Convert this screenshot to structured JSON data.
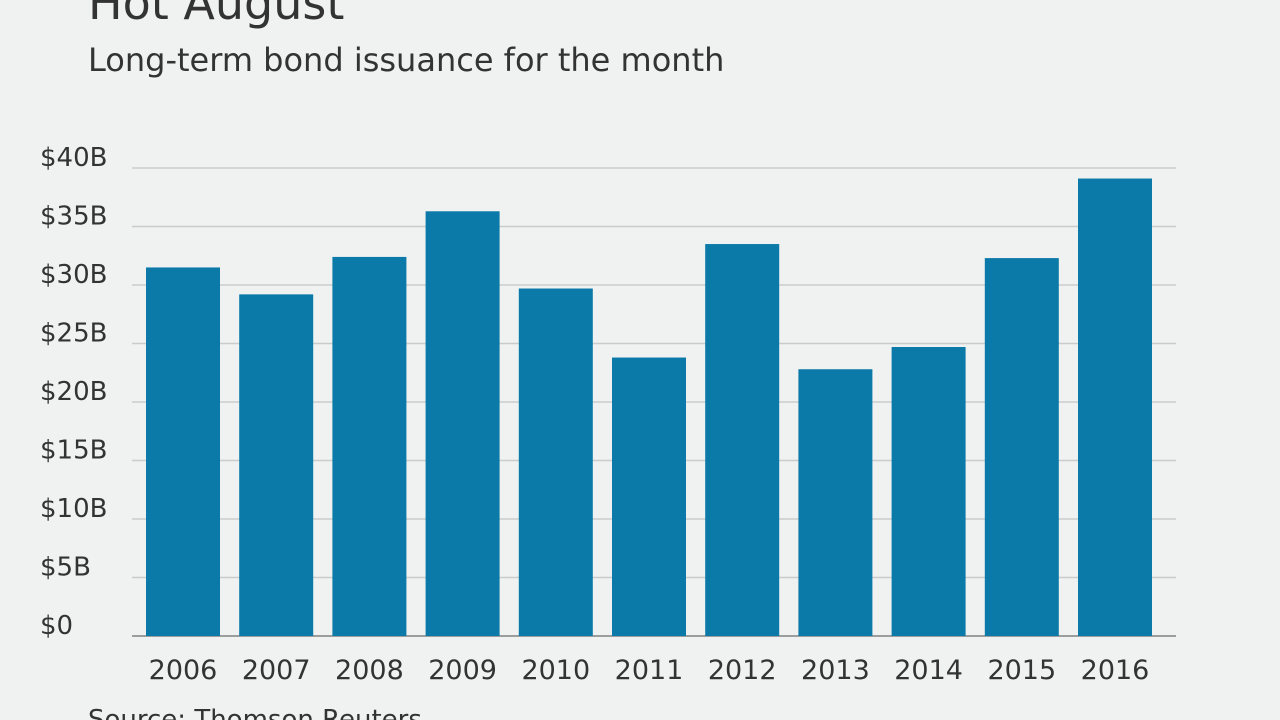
{
  "title": "Hot August",
  "subtitle": "Long-term bond issuance for the month",
  "source": "Source: Thomson Reuters",
  "colors": {
    "bar": "#0b7aa8",
    "grid": "#c9cccc",
    "axis": "#9a9e9e",
    "text": "#333333",
    "background": "#f0f2f2"
  },
  "chart_data": {
    "type": "bar",
    "title": "Hot August",
    "subtitle": "Long-term bond issuance for the month",
    "xlabel": "",
    "ylabel": "",
    "categories": [
      "2006",
      "2007",
      "2008",
      "2009",
      "2010",
      "2011",
      "2012",
      "2013",
      "2014",
      "2015",
      "2016"
    ],
    "values": [
      31.5,
      29.2,
      32.4,
      36.3,
      29.7,
      23.8,
      33.5,
      22.8,
      24.7,
      32.3,
      39.1
    ],
    "unit": "billion USD",
    "ylim": [
      0,
      40
    ],
    "yticks": [
      0,
      5,
      10,
      15,
      20,
      25,
      30,
      35,
      40
    ],
    "ytick_labels": [
      "$0",
      "$5B",
      "$10B",
      "$15B",
      "$20B",
      "$25B",
      "$30B",
      "$35B",
      "$40B"
    ],
    "grid": true,
    "legend": "none",
    "source": "Source: Thomson Reuters"
  }
}
